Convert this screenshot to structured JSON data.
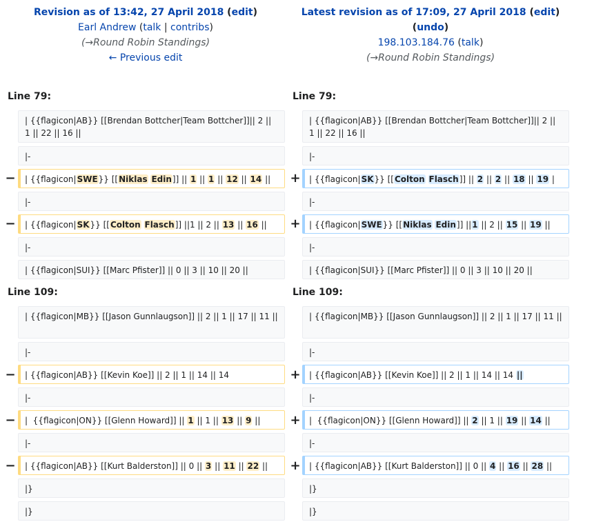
{
  "left_header": {
    "title": "Revision as of 13:42, 27 April 2018",
    "edit_open": " (",
    "edit_link": "edit",
    "edit_close": ")",
    "user": "Earl Andrew",
    "user_open": " (",
    "talk_link": "talk",
    "sep": " | ",
    "contribs_link": "contribs",
    "user_close": ")",
    "summary": "(→Round Robin Standings)",
    "prev_edit": "← Previous edit"
  },
  "right_header": {
    "title": "Latest revision as of 17:09, 27 April 2018",
    "edit_open": " (",
    "edit_link": "edit",
    "edit_close": ")",
    "undo_open": "(",
    "undo_link": "undo",
    "undo_close": ")",
    "user": "198.103.184.76",
    "talk_open": " (",
    "talk_link": "talk",
    "talk_close": ")",
    "summary": "(→Round Robin Standings)"
  },
  "markers": {
    "minus": "−",
    "plus": "+"
  },
  "sections": [
    {
      "left_label": "Line 79:",
      "right_label": "Line 79:"
    },
    {
      "left_label": "Line 109:",
      "right_label": "Line 109:"
    }
  ],
  "rows": {
    "r1": {
      "left": "| {{flagicon|AB}} [[Brendan Bottcher|Team Bottcher]]|| 2 || 1 || 22 || 16 ||",
      "right": "| {{flagicon|AB}} [[Brendan Bottcher|Team Bottcher]]|| 2 || 1 || 22 || 16 ||"
    },
    "r2": {
      "left": "|-",
      "right": "|-"
    },
    "r3": {
      "left": {
        "t1": "| {{flagicon|",
        "c1": "SWE",
        "t2": "}} [[",
        "c2": "Niklas",
        "t3": " ",
        "c3": "Edin",
        "t4": "]] || ",
        "c4": "1",
        "t5": " || ",
        "c5": "1",
        "t6": " || ",
        "c6": "12",
        "t7": " || ",
        "c7": "14",
        "t8": " ||"
      },
      "right": {
        "t1": "| {{flagicon|",
        "c1": "SK",
        "t2": "}} [[",
        "c2": "Colton",
        "t3": " ",
        "c3": "Flasch",
        "t4": "]] || ",
        "c4": "2",
        "t5": " || ",
        "c5": "2",
        "t6": " || ",
        "c6": "18",
        "t7": " || ",
        "c7": "19",
        "t8": " |"
      }
    },
    "r4": {
      "left": "|-",
      "right": "|-"
    },
    "r5": {
      "left": {
        "t1": "| {{flagicon|",
        "c1": "SK",
        "t2": "}} [[",
        "c2": "Colton",
        "t3": " ",
        "c3": "Flasch",
        "t4": "]] ||1 || 2 || ",
        "c4": "13",
        "t5": " || ",
        "c5": "16",
        "t6": " ||"
      },
      "right": {
        "t1": "| {{flagicon|",
        "c1": "SWE",
        "t2": "}} [[",
        "c2": "Niklas",
        "t3": " ",
        "c3": "Edin",
        "t4": "]] ||",
        "c4": "1",
        "t5": " || 2 || ",
        "c5": "15",
        "t6": " || ",
        "c6": "19",
        "t7": " ||"
      }
    },
    "r6": {
      "left": "|-",
      "right": "|-"
    },
    "r7": {
      "left": "| {{flagicon|SUI}} [[Marc Pfister]] || 0 || 3 || 10 || 20 ||",
      "right": "| {{flagicon|SUI}} [[Marc Pfister]] || 0 || 3 || 10 || 20 ||"
    },
    "s1": {
      "left": "| {{flagicon|MB}} [[Jason Gunnlaugson]] || 2 || 1 || 17 || 11 ||",
      "right": "| {{flagicon|MB}} [[Jason Gunnlaugson]] || 2 || 1 || 17 || 11 ||"
    },
    "s2": {
      "left": "|-",
      "right": "|-"
    },
    "s3": {
      "left": {
        "t1": "| {{flagicon|AB}} [[Kevin Koe]] || 2 || 1 || 14 || 14"
      },
      "right": {
        "t1": "| {{flagicon|AB}} [[Kevin Koe]] || 2 || 1 || 14 || 14 ",
        "c1": "||"
      }
    },
    "s4": {
      "left": "|-",
      "right": "|-"
    },
    "s5": {
      "left": {
        "t1": "|  {{flagicon|ON}} [[Glenn Howard]] || ",
        "c1": "1",
        "t2": " || 1 || ",
        "c2": "13",
        "t3": " || ",
        "c3": "9",
        "t4": " ||"
      },
      "right": {
        "t1": "|  {{flagicon|ON}} [[Glenn Howard]] || ",
        "c1": "2",
        "t2": " || 1 || ",
        "c2": "19",
        "t3": " || ",
        "c3": "14",
        "t4": " ||"
      }
    },
    "s6": {
      "left": "|-",
      "right": "|-"
    },
    "s7": {
      "left": {
        "t1": "| {{flagicon|AB}} [[Kurt Balderston]] || 0 || ",
        "c1": "3",
        "t2": " || ",
        "c2": "11",
        "t3": " || ",
        "c3": "22",
        "t4": " ||"
      },
      "right": {
        "t1": "| {{flagicon|AB}} [[Kurt Balderston]] || 0 || ",
        "c1": "4",
        "t2": " || ",
        "c2": "16",
        "t3": " || ",
        "c3": "28",
        "t4": " ||"
      }
    },
    "s8": {
      "left": "|}",
      "right": "|}"
    },
    "s9": {
      "left": "|}",
      "right": "|}"
    }
  }
}
